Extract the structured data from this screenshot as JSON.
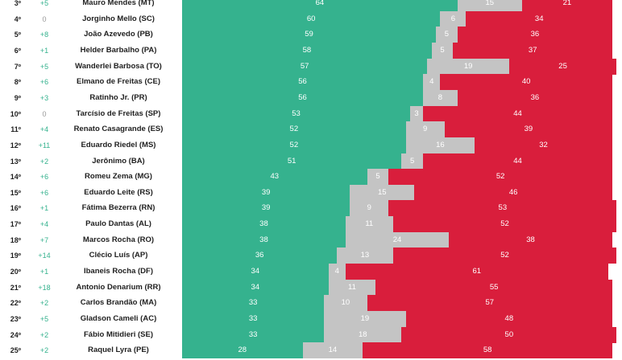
{
  "colors": {
    "approve": "#35b28e",
    "neutral": "#c4c4c4",
    "disapprove": "#d91e3c",
    "change_up": "#35b28e",
    "change_down": "#d91e3c",
    "change_zero": "#9a9a9a"
  },
  "chart_data": {
    "type": "bar",
    "orientation": "horizontal",
    "stacked": true,
    "xlim": [
      0,
      100
    ],
    "grid": false,
    "legend": "none",
    "categories": [
      "Mauro Mendes (MT)",
      "Jorginho Mello (SC)",
      "João Azevedo (PB)",
      "Helder Barbalho (PA)",
      "Wanderlei Barbosa (TO)",
      "Elmano de Freitas (CE)",
      "Ratinho Jr. (PR)",
      "Tarcísio de Freitas (SP)",
      "Renato Casagrande (ES)",
      "Eduardo Riedel (MS)",
      "Jerônimo (BA)",
      "Romeu Zema (MG)",
      "Eduardo Leite (RS)",
      "Fátima Bezerra (RN)",
      "Paulo Dantas (AL)",
      "Marcos Rocha (RO)",
      "Clécio Luís (AP)",
      "Ibaneis Rocha (DF)",
      "Antonio Denarium (RR)",
      "Carlos Brandão (MA)",
      "Gladson Cameli (AC)",
      "Fábio Mitidieri (SE)",
      "Raquel Lyra (PE)"
    ],
    "ranks": [
      "3º",
      "4º",
      "5º",
      "6º",
      "7º",
      "8º",
      "9º",
      "10º",
      "11º",
      "12º",
      "13º",
      "14º",
      "15º",
      "16º",
      "17º",
      "18º",
      "19º",
      "20º",
      "21º",
      "22º",
      "23º",
      "24º",
      "25º"
    ],
    "changes": [
      "+5",
      "0",
      "+8",
      "+1",
      "+5",
      "+6",
      "+3",
      "0",
      "+4",
      "+11",
      "+2",
      "+6",
      "+6",
      "+1",
      "+4",
      "+7",
      "+14",
      "+1",
      "+18",
      "+2",
      "+5",
      "+2",
      "+2"
    ],
    "series": [
      {
        "values": [
          64,
          60,
          59,
          58,
          57,
          56,
          56,
          53,
          52,
          52,
          51,
          43,
          39,
          39,
          38,
          38,
          36,
          34,
          34,
          33,
          33,
          33,
          28
        ]
      },
      {
        "values": [
          15,
          6,
          5,
          5,
          19,
          4,
          8,
          3,
          9,
          16,
          5,
          5,
          15,
          9,
          11,
          24,
          13,
          4,
          11,
          10,
          19,
          18,
          14
        ]
      },
      {
        "values": [
          21,
          34,
          36,
          37,
          25,
          40,
          36,
          44,
          39,
          32,
          44,
          52,
          46,
          53,
          52,
          38,
          52,
          61,
          55,
          57,
          48,
          50,
          58
        ]
      }
    ]
  }
}
